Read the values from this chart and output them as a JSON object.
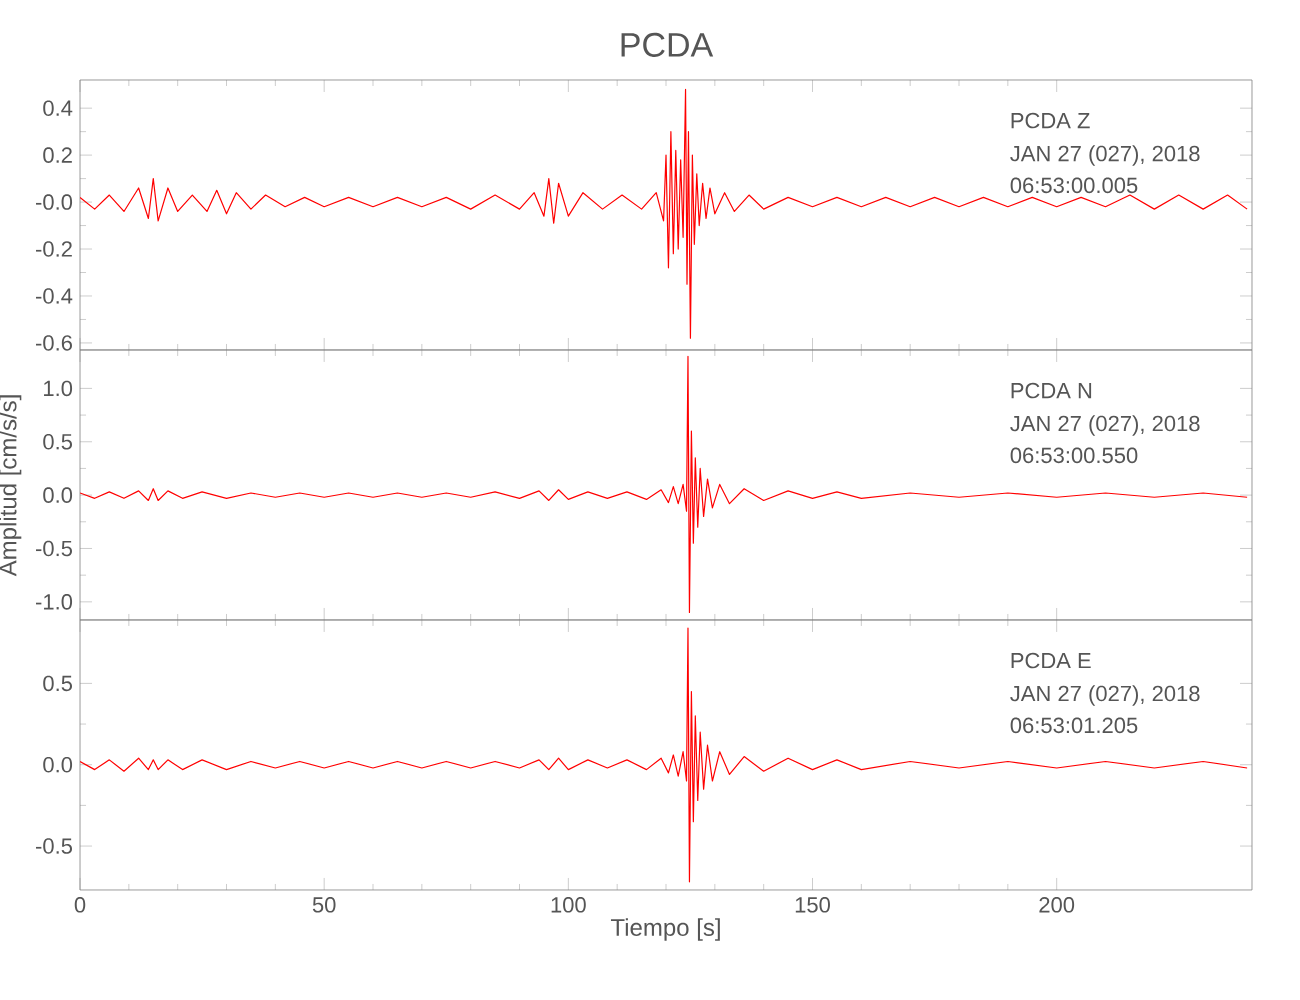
{
  "chart_data": [
    {
      "type": "line",
      "title": "PCDA",
      "color": "#ff0000",
      "tick_labels": "y",
      "annotations": [
        "PCDA   Z",
        "JAN 27 (027), 2018",
        "06:53:00.005"
      ],
      "xlim": [
        0,
        240
      ],
      "xticks": [
        0,
        50,
        100,
        150,
        200
      ],
      "ylim": [
        -0.63,
        0.52
      ],
      "yticks": [
        {
          "value": -0.6,
          "label": "-0.6"
        },
        {
          "value": -0.4,
          "label": "-0.4"
        },
        {
          "value": -0.2,
          "label": "-0.2"
        },
        {
          "value": 0,
          "label": "-0.0"
        },
        {
          "value": 0.2,
          "label": "0.2"
        },
        {
          "value": 0.4,
          "label": "0.4"
        }
      ],
      "x": [
        0,
        3,
        6,
        9,
        12,
        14,
        15,
        16,
        18,
        20,
        23,
        26,
        28,
        30,
        32,
        35,
        38,
        42,
        46,
        50,
        55,
        60,
        65,
        70,
        75,
        80,
        85,
        90,
        93,
        95,
        96,
        97,
        98,
        100,
        103,
        107,
        111,
        115,
        118,
        119.5,
        120,
        120.5,
        121,
        121.5,
        122,
        122.5,
        123,
        123.5,
        124,
        124.3,
        124.6,
        125,
        125.4,
        125.8,
        126.3,
        126.8,
        127.5,
        128.2,
        129,
        130,
        132,
        134,
        137,
        140,
        145,
        150,
        155,
        160,
        165,
        170,
        175,
        180,
        185,
        190,
        195,
        200,
        205,
        210,
        215,
        220,
        225,
        230,
        235,
        239
      ],
      "values": [
        0.02,
        -0.03,
        0.03,
        -0.04,
        0.06,
        -0.07,
        0.1,
        -0.08,
        0.06,
        -0.04,
        0.03,
        -0.04,
        0.05,
        -0.05,
        0.04,
        -0.03,
        0.03,
        -0.02,
        0.02,
        -0.02,
        0.02,
        -0.02,
        0.02,
        -0.02,
        0.02,
        -0.03,
        0.03,
        -0.03,
        0.04,
        -0.06,
        0.1,
        -0.09,
        0.08,
        -0.06,
        0.04,
        -0.03,
        0.03,
        -0.03,
        0.04,
        -0.08,
        0.2,
        -0.28,
        0.3,
        -0.22,
        0.22,
        -0.2,
        0.18,
        -0.15,
        0.48,
        -0.35,
        0.3,
        -0.58,
        0.2,
        -0.18,
        0.12,
        -0.1,
        0.08,
        -0.07,
        0.06,
        -0.05,
        0.04,
        -0.04,
        0.03,
        -0.03,
        0.02,
        -0.02,
        0.02,
        -0.02,
        0.02,
        -0.02,
        0.02,
        -0.02,
        0.02,
        -0.02,
        0.02,
        -0.02,
        0.02,
        -0.02,
        0.03,
        -0.03,
        0.03,
        -0.03,
        0.03,
        -0.03
      ]
    },
    {
      "type": "line",
      "ylabel": "Amplitud [cm/s/s]",
      "color": "#ff0000",
      "tick_labels": "y",
      "annotations": [
        "PCDA   N",
        "JAN 27 (027), 2018",
        "06:53:00.550"
      ],
      "xlim": [
        0,
        240
      ],
      "xticks": [
        0,
        50,
        100,
        150,
        200
      ],
      "ylim": [
        -1.17,
        1.36
      ],
      "yticks": [
        {
          "value": -1,
          "label": "-1.0"
        },
        {
          "value": -0.5,
          "label": "-0.5"
        },
        {
          "value": 0,
          "label": "0.0"
        },
        {
          "value": 0.5,
          "label": "0.5"
        },
        {
          "value": 1,
          "label": "1.0"
        }
      ],
      "x": [
        0,
        3,
        6,
        9,
        12,
        14,
        15,
        16,
        18,
        21,
        25,
        30,
        35,
        40,
        45,
        50,
        55,
        60,
        65,
        70,
        75,
        80,
        85,
        90,
        94,
        96,
        98,
        100,
        104,
        108,
        112,
        116,
        119,
        120.5,
        121.5,
        122.5,
        123.5,
        124.2,
        124.5,
        124.8,
        125.2,
        125.6,
        126,
        126.5,
        127,
        127.7,
        128.5,
        129.5,
        131,
        133,
        136,
        140,
        145,
        150,
        155,
        160,
        170,
        180,
        190,
        200,
        210,
        220,
        230,
        239
      ],
      "values": [
        0.02,
        -0.03,
        0.03,
        -0.03,
        0.04,
        -0.05,
        0.06,
        -0.05,
        0.04,
        -0.03,
        0.03,
        -0.03,
        0.02,
        -0.02,
        0.02,
        -0.02,
        0.02,
        -0.02,
        0.02,
        -0.02,
        0.02,
        -0.02,
        0.03,
        -0.03,
        0.04,
        -0.05,
        0.05,
        -0.04,
        0.03,
        -0.03,
        0.03,
        -0.04,
        0.05,
        -0.07,
        0.08,
        -0.08,
        0.1,
        -0.15,
        1.3,
        -1.1,
        0.6,
        -0.45,
        0.35,
        -0.3,
        0.25,
        -0.2,
        0.15,
        -0.12,
        0.1,
        -0.08,
        0.06,
        -0.05,
        0.04,
        -0.03,
        0.03,
        -0.03,
        0.02,
        -0.02,
        0.02,
        -0.02,
        0.02,
        -0.02,
        0.02,
        -0.02
      ]
    },
    {
      "type": "line",
      "xlabel": "Tiempo [s]",
      "color": "#ff0000",
      "annotations": [
        "PCDA   E",
        "JAN 27 (027), 2018",
        "06:53:01.205"
      ],
      "xlim": [
        0,
        240
      ],
      "xticks": [
        0,
        50,
        100,
        150,
        200
      ],
      "ylim": [
        -0.77,
        0.89
      ],
      "yticks": [
        {
          "value": -0.5,
          "label": "-0.5"
        },
        {
          "value": 0,
          "label": "0.0"
        },
        {
          "value": 0.5,
          "label": "0.5"
        }
      ],
      "x": [
        0,
        3,
        6,
        9,
        12,
        14,
        15,
        16,
        18,
        21,
        25,
        30,
        35,
        40,
        45,
        50,
        55,
        60,
        65,
        70,
        75,
        80,
        85,
        90,
        94,
        96,
        98,
        100,
        104,
        108,
        112,
        116,
        119,
        120.5,
        121.5,
        122.5,
        123.5,
        124.2,
        124.5,
        124.8,
        125.2,
        125.6,
        126,
        126.5,
        127,
        127.7,
        128.5,
        129.5,
        131,
        133,
        136,
        140,
        145,
        150,
        155,
        160,
        170,
        180,
        190,
        200,
        210,
        220,
        230,
        239
      ],
      "values": [
        0.02,
        -0.03,
        0.03,
        -0.04,
        0.04,
        -0.03,
        0.03,
        -0.03,
        0.03,
        -0.03,
        0.03,
        -0.03,
        0.02,
        -0.02,
        0.02,
        -0.02,
        0.02,
        -0.02,
        0.02,
        -0.02,
        0.02,
        -0.02,
        0.02,
        -0.02,
        0.03,
        -0.03,
        0.04,
        -0.03,
        0.03,
        -0.02,
        0.03,
        -0.03,
        0.04,
        -0.05,
        0.06,
        -0.07,
        0.08,
        -0.1,
        0.84,
        -0.72,
        0.45,
        -0.35,
        0.3,
        -0.22,
        0.2,
        -0.15,
        0.12,
        -0.1,
        0.08,
        -0.06,
        0.05,
        -0.04,
        0.04,
        -0.03,
        0.03,
        -0.03,
        0.02,
        -0.02,
        0.02,
        -0.02,
        0.02,
        -0.02,
        0.02,
        -0.02
      ]
    }
  ]
}
